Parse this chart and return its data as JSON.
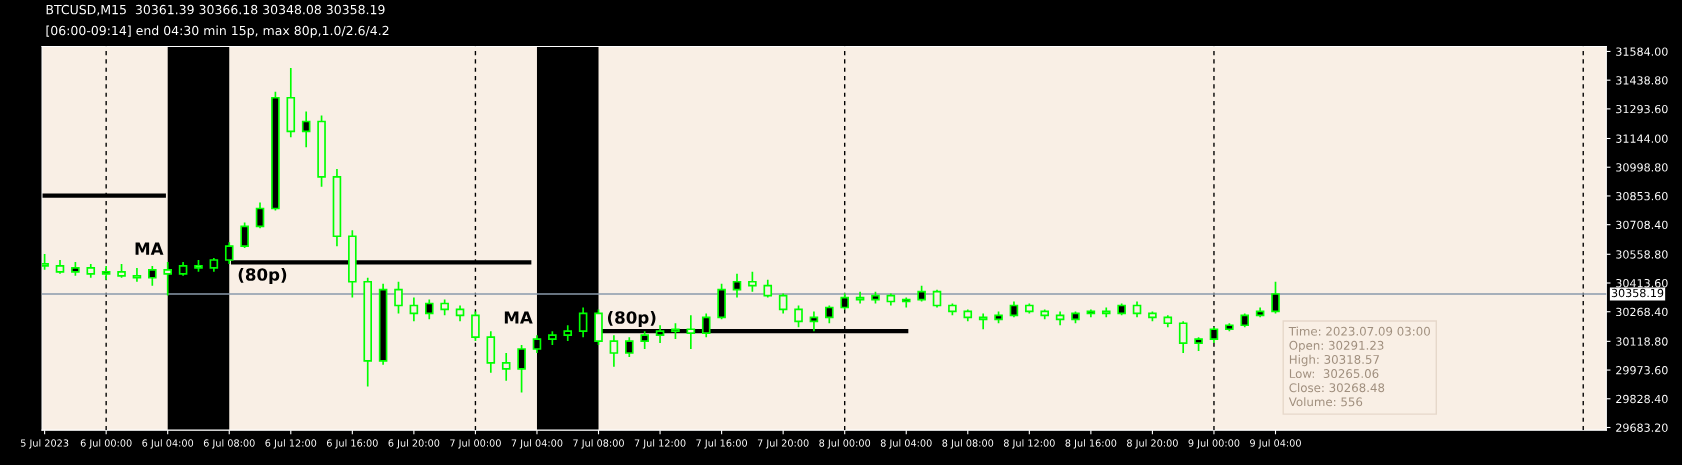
{
  "chart_data": {
    "type": "candlestick",
    "title": "BTCUSD,M15  30361.39 30366.18 30348.08 30358.19",
    "subtitle": "[06:00-09:14] end 04:30 min 15p, max 80p,1.0/2.6/4.2",
    "series": [
      {
        "color": "#00ff00",
        "x": [
          "2023-07-05T20:00",
          "2023-07-05T21:00",
          "2023-07-05T22:00",
          "2023-07-05T23:00",
          "2023-07-06T00:00",
          "2023-07-06T01:00",
          "2023-07-06T02:00",
          "2023-07-06T03:00",
          "2023-07-06T04:00",
          "2023-07-06T05:00",
          "2023-07-06T06:00",
          "2023-07-06T07:00",
          "2023-07-06T08:00",
          "2023-07-06T09:00",
          "2023-07-06T10:00",
          "2023-07-06T11:00",
          "2023-07-06T12:00",
          "2023-07-06T13:00",
          "2023-07-06T14:00",
          "2023-07-06T15:00",
          "2023-07-06T16:00",
          "2023-07-06T17:00",
          "2023-07-06T18:00",
          "2023-07-06T19:00",
          "2023-07-06T20:00",
          "2023-07-06T21:00",
          "2023-07-06T22:00",
          "2023-07-06T23:00",
          "2023-07-07T00:00",
          "2023-07-07T01:00",
          "2023-07-07T02:00",
          "2023-07-07T03:00",
          "2023-07-07T04:00",
          "2023-07-07T05:00",
          "2023-07-07T06:00",
          "2023-07-07T07:00",
          "2023-07-07T08:00",
          "2023-07-07T09:00",
          "2023-07-07T10:00",
          "2023-07-07T11:00",
          "2023-07-07T12:00",
          "2023-07-07T13:00",
          "2023-07-07T14:00",
          "2023-07-07T15:00",
          "2023-07-07T16:00",
          "2023-07-07T17:00",
          "2023-07-07T18:00",
          "2023-07-07T19:00",
          "2023-07-07T20:00",
          "2023-07-07T21:00",
          "2023-07-07T22:00",
          "2023-07-07T23:00",
          "2023-07-08T00:00",
          "2023-07-08T01:00",
          "2023-07-08T02:00",
          "2023-07-08T03:00",
          "2023-07-08T04:00",
          "2023-07-08T05:00",
          "2023-07-08T06:00",
          "2023-07-08T07:00",
          "2023-07-08T08:00",
          "2023-07-08T09:00",
          "2023-07-08T10:00",
          "2023-07-08T11:00",
          "2023-07-08T12:00",
          "2023-07-08T13:00",
          "2023-07-08T14:00",
          "2023-07-08T15:00",
          "2023-07-08T16:00",
          "2023-07-08T17:00",
          "2023-07-08T18:00",
          "2023-07-08T19:00",
          "2023-07-08T20:00",
          "2023-07-08T21:00",
          "2023-07-08T22:00",
          "2023-07-08T23:00",
          "2023-07-09T00:00",
          "2023-07-09T01:00",
          "2023-07-09T02:00",
          "2023-07-09T03:00",
          "2023-07-09T04:00"
        ],
        "ohlc": [
          [
            30510,
            30560,
            30480,
            30500
          ],
          [
            30500,
            30530,
            30460,
            30470
          ],
          [
            30470,
            30520,
            30450,
            30490
          ],
          [
            30490,
            30510,
            30440,
            30460
          ],
          [
            30460,
            30500,
            30430,
            30470
          ],
          [
            30470,
            30510,
            30440,
            30450
          ],
          [
            30450,
            30490,
            30420,
            30440
          ],
          [
            30440,
            30500,
            30400,
            30480
          ],
          [
            30480,
            30520,
            30350,
            30460
          ],
          [
            30460,
            30520,
            30450,
            30500
          ],
          [
            30500,
            30530,
            30470,
            30490
          ],
          [
            30490,
            30540,
            30470,
            30530
          ],
          [
            30530,
            30620,
            30510,
            30600
          ],
          [
            30600,
            30720,
            30590,
            30700
          ],
          [
            30700,
            30820,
            30690,
            30790
          ],
          [
            30790,
            31380,
            30780,
            31350
          ],
          [
            31350,
            31500,
            31150,
            31180
          ],
          [
            31180,
            31280,
            31100,
            31230
          ],
          [
            31230,
            31260,
            30900,
            30950
          ],
          [
            30950,
            30990,
            30600,
            30650
          ],
          [
            30650,
            30680,
            30340,
            30420
          ],
          [
            30420,
            30440,
            29890,
            30020
          ],
          [
            30020,
            30410,
            30000,
            30380
          ],
          [
            30380,
            30420,
            30260,
            30300
          ],
          [
            30300,
            30340,
            30220,
            30260
          ],
          [
            30260,
            30330,
            30230,
            30310
          ],
          [
            30310,
            30330,
            30250,
            30280
          ],
          [
            30280,
            30300,
            30220,
            30250
          ],
          [
            30250,
            30270,
            30120,
            30140
          ],
          [
            30140,
            30170,
            29960,
            30010
          ],
          [
            30010,
            30060,
            29920,
            29980
          ],
          [
            29980,
            30100,
            29860,
            30080
          ],
          [
            30080,
            30150,
            30060,
            30130
          ],
          [
            30130,
            30170,
            30100,
            30150
          ],
          [
            30150,
            30200,
            30120,
            30170
          ],
          [
            30170,
            30290,
            30140,
            30260
          ],
          [
            30260,
            30280,
            30100,
            30120
          ],
          [
            30120,
            30150,
            29990,
            30060
          ],
          [
            30060,
            30140,
            30040,
            30120
          ],
          [
            30120,
            30170,
            30080,
            30150
          ],
          [
            30150,
            30200,
            30110,
            30170
          ],
          [
            30170,
            30210,
            30130,
            30180
          ],
          [
            30180,
            30250,
            30080,
            30160
          ],
          [
            30160,
            30260,
            30140,
            30240
          ],
          [
            30240,
            30410,
            30230,
            30380
          ],
          [
            30380,
            30460,
            30340,
            30420
          ],
          [
            30420,
            30470,
            30370,
            30400
          ],
          [
            30400,
            30430,
            30340,
            30350
          ],
          [
            30350,
            30360,
            30260,
            30280
          ],
          [
            30280,
            30300,
            30190,
            30220
          ],
          [
            30220,
            30270,
            30170,
            30240
          ],
          [
            30240,
            30300,
            30210,
            30290
          ],
          [
            30290,
            30360,
            30280,
            30340
          ],
          [
            30340,
            30370,
            30310,
            30330
          ],
          [
            30330,
            30370,
            30310,
            30350
          ],
          [
            30350,
            30360,
            30300,
            30320
          ],
          [
            30320,
            30340,
            30290,
            30330
          ],
          [
            30330,
            30400,
            30320,
            30370
          ],
          [
            30370,
            30380,
            30290,
            30300
          ],
          [
            30300,
            30310,
            30250,
            30270
          ],
          [
            30270,
            30280,
            30220,
            30240
          ],
          [
            30240,
            30260,
            30180,
            30230
          ],
          [
            30230,
            30270,
            30210,
            30250
          ],
          [
            30250,
            30320,
            30240,
            30300
          ],
          [
            30300,
            30310,
            30260,
            30270
          ],
          [
            30270,
            30280,
            30230,
            30250
          ],
          [
            30250,
            30270,
            30200,
            30230
          ],
          [
            30230,
            30270,
            30210,
            30260
          ],
          [
            30260,
            30280,
            30240,
            30270
          ],
          [
            30270,
            30290,
            30240,
            30260
          ],
          [
            30260,
            30310,
            30250,
            30300
          ],
          [
            30300,
            30320,
            30240,
            30260
          ],
          [
            30260,
            30270,
            30220,
            30240
          ],
          [
            30240,
            30250,
            30190,
            30210
          ],
          [
            30210,
            30220,
            30060,
            30110
          ],
          [
            30110,
            30140,
            30070,
            30130
          ],
          [
            30130,
            30190,
            30110,
            30180
          ],
          [
            30180,
            30210,
            30170,
            30200
          ],
          [
            30200,
            30260,
            30190,
            30250
          ],
          [
            30250,
            30290,
            30240,
            30270
          ],
          [
            30270,
            30420,
            30260,
            30358.19
          ]
        ]
      },
      {
        "type": "line",
        "color": "#000000",
        "x": [
          "2023-07-05T20:00",
          "2023-07-06T03:45"
        ],
        "values": [
          30855,
          30855
        ]
      },
      {
        "type": "line",
        "color": "#000000",
        "x": [
          "2023-07-06T08:15",
          "2023-07-07T03:30"
        ],
        "values": [
          30518,
          30518
        ]
      },
      {
        "type": "line",
        "color": "#000000",
        "x": [
          "2023-07-07T08:15",
          "2023-07-08T04:00"
        ],
        "values": [
          30170,
          30170
        ]
      }
    ],
    "xlim": [
      "2023-07-05T19:50",
      "2023-07-10T01:30"
    ],
    "xticks": [
      {
        "value": "2023-07-05T20:00",
        "label": "5 Jul 2023"
      },
      {
        "value": "2023-07-06T00:00",
        "label": "6 Jul 00:00"
      },
      {
        "value": "2023-07-06T04:00",
        "label": "6 Jul 04:00"
      },
      {
        "value": "2023-07-06T08:00",
        "label": "6 Jul 08:00"
      },
      {
        "value": "2023-07-06T12:00",
        "label": "6 Jul 12:00"
      },
      {
        "value": "2023-07-06T16:00",
        "label": "6 Jul 16:00"
      },
      {
        "value": "2023-07-06T20:00",
        "label": "6 Jul 20:00"
      },
      {
        "value": "2023-07-07T00:00",
        "label": "7 Jul 00:00"
      },
      {
        "value": "2023-07-07T04:00",
        "label": "7 Jul 04:00"
      },
      {
        "value": "2023-07-07T08:00",
        "label": "7 Jul 08:00"
      },
      {
        "value": "2023-07-07T12:00",
        "label": "7 Jul 12:00"
      },
      {
        "value": "2023-07-07T16:00",
        "label": "7 Jul 16:00"
      },
      {
        "value": "2023-07-07T20:00",
        "label": "7 Jul 20:00"
      },
      {
        "value": "2023-07-08T00:00",
        "label": "8 Jul 00:00"
      },
      {
        "value": "2023-07-08T04:00",
        "label": "8 Jul 04:00"
      },
      {
        "value": "2023-07-08T08:00",
        "label": "8 Jul 08:00"
      },
      {
        "value": "2023-07-08T12:00",
        "label": "8 Jul 12:00"
      },
      {
        "value": "2023-07-08T16:00",
        "label": "8 Jul 16:00"
      },
      {
        "value": "2023-07-08T20:00",
        "label": "8 Jul 20:00"
      },
      {
        "value": "2023-07-09T00:00",
        "label": "9 Jul 00:00"
      },
      {
        "value": "2023-07-09T04:00",
        "label": "9 Jul 04:00"
      }
    ],
    "ylim": [
      29670,
      31609
    ],
    "yticks": [
      {
        "value": 31584,
        "label": "31584.00"
      },
      {
        "value": 31438.8,
        "label": "31438.80"
      },
      {
        "value": 31293.6,
        "label": "31293.60"
      },
      {
        "value": 31144,
        "label": "31144.00"
      },
      {
        "value": 30998.8,
        "label": "30998.80"
      },
      {
        "value": 30853.6,
        "label": "30853.60"
      },
      {
        "value": 30708.4,
        "label": "30708.40"
      },
      {
        "value": 30558.8,
        "label": "30558.80"
      },
      {
        "value": 30413.6,
        "label": "30413.60"
      },
      {
        "value": 30268.4,
        "label": "30268.40"
      },
      {
        "value": 30118.8,
        "label": "30118.80"
      },
      {
        "value": 29973.6,
        "label": "29973.60"
      },
      {
        "value": 29828.4,
        "label": "29828.40"
      },
      {
        "value": 29683.2,
        "label": "29683.20"
      }
    ],
    "bands": [
      {
        "axis": "x",
        "from": "2023-07-06T04:00",
        "to": "2023-07-06T08:00",
        "label": null,
        "color": "#000000"
      },
      {
        "axis": "x",
        "from": "2023-07-07T04:00",
        "to": "2023-07-07T08:00",
        "label": null,
        "color": "#000000"
      }
    ],
    "ref_lines": [
      {
        "axis": "x",
        "value": "2023-07-06T00:00",
        "label": null,
        "color": "#000000",
        "line_style": "dashed"
      },
      {
        "axis": "x",
        "value": "2023-07-07T00:00",
        "label": null,
        "color": "#000000",
        "line_style": "dashed"
      },
      {
        "axis": "x",
        "value": "2023-07-08T00:00",
        "label": null,
        "color": "#000000",
        "line_style": "dashed"
      },
      {
        "axis": "x",
        "value": "2023-07-09T00:00",
        "label": null,
        "color": "#000000",
        "line_style": "dashed"
      },
      {
        "axis": "x",
        "value": "2023-07-10T00:00",
        "label": null,
        "color": "#000000",
        "line_style": "dashed"
      },
      {
        "axis": "y",
        "value": 30358.19,
        "label": "30358.19",
        "color": "#8a9aab",
        "line_style": "solid"
      }
    ],
    "annotations": [
      {
        "text": "MA",
        "x": "2023-07-06T04:00",
        "y": 30518
      },
      {
        "text": "(80p)",
        "x": "2023-07-06T08:15",
        "y": 30518
      },
      {
        "text": "MA",
        "x": "2023-07-07T04:00",
        "y": 30170
      },
      {
        "text": "(80p)",
        "x": "2023-07-07T08:15",
        "y": 30170
      },
      "Time: 2023.07.09 03:00\nOpen: 30291.23\nHigh: 30318.57\nLow:  30265.06\nClose: 30268.48\nVolume: 556"
    ]
  }
}
